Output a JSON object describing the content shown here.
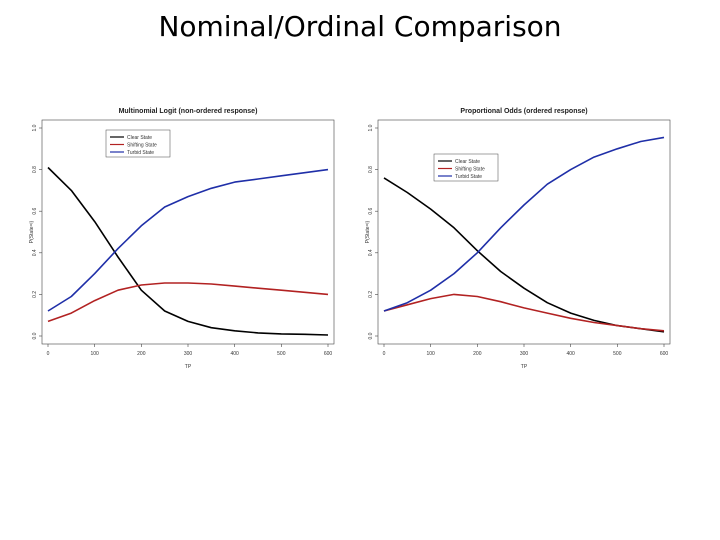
{
  "slide": {
    "title": "Nominal/Ordinal Comparison"
  },
  "colors": {
    "clear": "#000000",
    "shifting": "#b22222",
    "turbid": "#1f2fa8",
    "axis": "#444444"
  },
  "chart_data": [
    {
      "type": "line",
      "title": "Multinomial Logit (non-ordered response)",
      "xlabel": "TP",
      "ylabel": "P(State=i)",
      "xlim": [
        0,
        600
      ],
      "ylim": [
        0,
        1
      ],
      "xticks": [
        "0",
        "100",
        "200",
        "300",
        "400",
        "500",
        "600"
      ],
      "yticks": [
        "0.0",
        "0.2",
        "0.4",
        "0.6",
        "0.8",
        "1.0"
      ],
      "legend_position": "top-left",
      "x": [
        0,
        50,
        100,
        150,
        200,
        250,
        300,
        350,
        400,
        450,
        500,
        550,
        600
      ],
      "series": [
        {
          "name": "Clear State",
          "color": "#000000",
          "values": [
            0.81,
            0.7,
            0.55,
            0.38,
            0.22,
            0.12,
            0.07,
            0.04,
            0.025,
            0.015,
            0.01,
            0.008,
            0.005
          ]
        },
        {
          "name": "Shifting State",
          "color": "#b22222",
          "values": [
            0.07,
            0.11,
            0.17,
            0.22,
            0.245,
            0.255,
            0.255,
            0.25,
            0.24,
            0.23,
            0.22,
            0.21,
            0.2
          ]
        },
        {
          "name": "Turbid State",
          "color": "#1f2fa8",
          "values": [
            0.12,
            0.19,
            0.3,
            0.42,
            0.53,
            0.62,
            0.67,
            0.71,
            0.74,
            0.755,
            0.77,
            0.785,
            0.8
          ]
        }
      ]
    },
    {
      "type": "line",
      "title": "Proportional Odds (ordered response)",
      "xlabel": "TP",
      "ylabel": "P(State=i)",
      "xlim": [
        0,
        600
      ],
      "ylim": [
        0,
        1
      ],
      "xticks": [
        "0",
        "100",
        "200",
        "300",
        "400",
        "500",
        "600"
      ],
      "yticks": [
        "0.0",
        "0.2",
        "0.4",
        "0.6",
        "0.8",
        "1.0"
      ],
      "legend_position": "top-left",
      "x": [
        0,
        50,
        100,
        150,
        200,
        250,
        300,
        350,
        400,
        450,
        500,
        550,
        600
      ],
      "series": [
        {
          "name": "Clear State",
          "color": "#000000",
          "values": [
            0.76,
            0.69,
            0.61,
            0.52,
            0.41,
            0.31,
            0.23,
            0.16,
            0.11,
            0.075,
            0.05,
            0.035,
            0.02
          ]
        },
        {
          "name": "Shifting State",
          "color": "#b22222",
          "values": [
            0.12,
            0.15,
            0.18,
            0.2,
            0.19,
            0.165,
            0.135,
            0.11,
            0.085,
            0.065,
            0.05,
            0.035,
            0.025
          ]
        },
        {
          "name": "Turbid State",
          "color": "#1f2fa8",
          "values": [
            0.12,
            0.16,
            0.22,
            0.3,
            0.4,
            0.52,
            0.63,
            0.73,
            0.8,
            0.86,
            0.9,
            0.935,
            0.955
          ]
        }
      ]
    }
  ]
}
